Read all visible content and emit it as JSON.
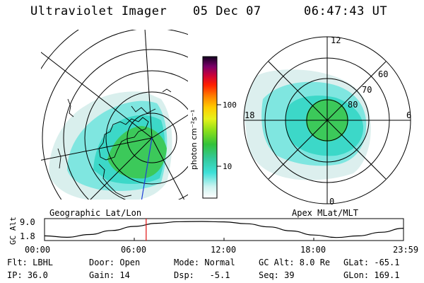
{
  "header": {
    "instrument": "Ultraviolet Imager",
    "date": "05 Dec 07",
    "time": "06:47:43 UT"
  },
  "left_panel": {
    "caption": "Geographic Lat/Lon"
  },
  "right_panel": {
    "caption": "Apex MLat/MLT",
    "mlt_labels": {
      "top": "12",
      "left": "18",
      "right": "6",
      "bottom": "0"
    },
    "mlat_labels": [
      "60",
      "70",
      "80"
    ]
  },
  "colorbar": {
    "unit_label": "photon cm⁻²s⁻¹",
    "ticks": [
      "100",
      "10"
    ],
    "colors": [
      "#ffffff",
      "#bff2ef",
      "#33ddd6",
      "#33c89a",
      "#2fbf3f",
      "#7fdc1a",
      "#dff01a",
      "#ffd000",
      "#ff8800",
      "#ff2200",
      "#cc0033",
      "#8a0066",
      "#2a0044",
      "#000000"
    ]
  },
  "chart_data": {
    "type": "line",
    "title": "",
    "ylabel": "GC Alt",
    "yticks": [
      "9.0",
      "1.8"
    ],
    "ylim": [
      1.8,
      9.0
    ],
    "xticks": [
      "00:00",
      "06:00",
      "12:00",
      "18:00",
      "23:59"
    ],
    "xlim_hours": [
      0,
      24
    ],
    "current_time_hours": 6.795,
    "series": [
      {
        "x": [
          0,
          1.5,
          3,
          4.5,
          6,
          7.5,
          9,
          10.5,
          12,
          13.5,
          15,
          16.5,
          18,
          19.5,
          21,
          22.5,
          24
        ],
        "values": [
          2.6,
          2.0,
          3.2,
          5.0,
          6.8,
          8.2,
          8.9,
          9.0,
          8.8,
          8.0,
          6.6,
          4.8,
          3.0,
          1.9,
          2.6,
          4.2,
          6.0
        ]
      }
    ]
  },
  "status": {
    "flt": "Flt: LBHL",
    "ip": "IP: 36.0",
    "door": "Door: Open",
    "gain": "Gain: 14",
    "mode": "Mode: Normal",
    "dsp": "Dsp:   -5.1",
    "gcalt": "GC Alt: 8.0 Re",
    "seq": "Seq: 39",
    "glat": "GLat: -65.1",
    "glon": "GLon: 169.1"
  }
}
